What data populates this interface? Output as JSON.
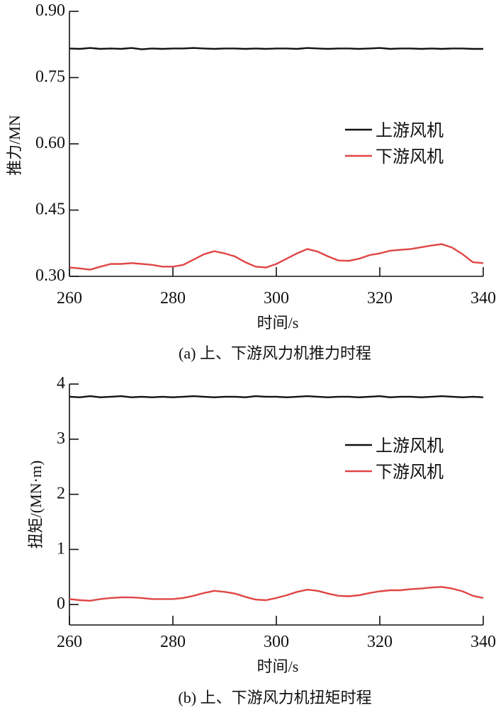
{
  "chart_data": [
    {
      "type": "line",
      "title": "(a)  上、下游风力机推力时程",
      "xlabel": "时间/s",
      "ylabel": "推力/MN",
      "xlim": [
        260,
        340
      ],
      "ylim": [
        0.3,
        0.9
      ],
      "xticks": [
        260,
        280,
        300,
        320,
        340
      ],
      "xtick_labels": [
        "260",
        "280",
        "300",
        "320",
        "340"
      ],
      "yticks": [
        0.3,
        0.45,
        0.6,
        0.75,
        0.9
      ],
      "ytick_labels": [
        "0.30",
        "0.45",
        "0.60",
        "0.75",
        "0.90"
      ],
      "legend": "right-middle",
      "grid": false,
      "x": [
        260,
        262,
        264,
        266,
        268,
        270,
        272,
        274,
        276,
        278,
        280,
        282,
        284,
        286,
        288,
        290,
        292,
        294,
        296,
        298,
        300,
        302,
        304,
        306,
        308,
        310,
        312,
        314,
        316,
        318,
        320,
        322,
        324,
        326,
        328,
        330,
        332,
        334,
        336,
        338,
        340
      ],
      "series": [
        {
          "name": "上游风机",
          "color": "#111111",
          "values": [
            0.816,
            0.815,
            0.817,
            0.815,
            0.816,
            0.815,
            0.817,
            0.814,
            0.816,
            0.815,
            0.816,
            0.816,
            0.817,
            0.816,
            0.815,
            0.816,
            0.816,
            0.815,
            0.816,
            0.815,
            0.816,
            0.816,
            0.815,
            0.817,
            0.816,
            0.815,
            0.816,
            0.816,
            0.815,
            0.816,
            0.817,
            0.815,
            0.816,
            0.816,
            0.815,
            0.816,
            0.815,
            0.816,
            0.816,
            0.815,
            0.815
          ]
        },
        {
          "name": "下游风机",
          "color": "#e04545",
          "values": [
            0.32,
            0.318,
            0.315,
            0.322,
            0.328,
            0.328,
            0.33,
            0.328,
            0.326,
            0.322,
            0.322,
            0.326,
            0.338,
            0.35,
            0.357,
            0.352,
            0.345,
            0.332,
            0.322,
            0.32,
            0.328,
            0.34,
            0.352,
            0.362,
            0.356,
            0.345,
            0.336,
            0.335,
            0.34,
            0.348,
            0.352,
            0.358,
            0.36,
            0.362,
            0.366,
            0.37,
            0.373,
            0.365,
            0.35,
            0.332,
            0.33
          ]
        }
      ]
    },
    {
      "type": "line",
      "title": "(b)  上、下游风力机扭矩时程",
      "xlabel": "时间/s",
      "ylabel": "扭矩/(MN·m)",
      "xlim": [
        260,
        340
      ],
      "ylim": [
        -0.37,
        4
      ],
      "xticks": [
        260,
        280,
        300,
        320,
        340
      ],
      "xtick_labels": [
        "260",
        "280",
        "300",
        "320",
        "340"
      ],
      "yticks": [
        0,
        1,
        2,
        3,
        4
      ],
      "ytick_labels": [
        "0",
        "1",
        "2",
        "3",
        "4"
      ],
      "legend": "right-middle",
      "grid": false,
      "x": [
        260,
        262,
        264,
        266,
        268,
        270,
        272,
        274,
        276,
        278,
        280,
        282,
        284,
        286,
        288,
        290,
        292,
        294,
        296,
        298,
        300,
        302,
        304,
        306,
        308,
        310,
        312,
        314,
        316,
        318,
        320,
        322,
        324,
        326,
        328,
        330,
        332,
        334,
        336,
        338,
        340
      ],
      "series": [
        {
          "name": "上游风机",
          "color": "#111111",
          "values": [
            3.77,
            3.76,
            3.78,
            3.76,
            3.77,
            3.78,
            3.76,
            3.77,
            3.76,
            3.77,
            3.76,
            3.77,
            3.78,
            3.77,
            3.76,
            3.77,
            3.77,
            3.76,
            3.78,
            3.77,
            3.77,
            3.76,
            3.77,
            3.78,
            3.77,
            3.76,
            3.77,
            3.77,
            3.76,
            3.77,
            3.78,
            3.76,
            3.77,
            3.77,
            3.76,
            3.77,
            3.78,
            3.77,
            3.76,
            3.77,
            3.76
          ]
        },
        {
          "name": "下游风机",
          "color": "#e04545",
          "values": [
            0.1,
            0.08,
            0.07,
            0.1,
            0.12,
            0.13,
            0.13,
            0.12,
            0.1,
            0.1,
            0.1,
            0.12,
            0.16,
            0.21,
            0.25,
            0.23,
            0.2,
            0.14,
            0.09,
            0.08,
            0.12,
            0.17,
            0.23,
            0.27,
            0.25,
            0.2,
            0.16,
            0.15,
            0.17,
            0.21,
            0.24,
            0.26,
            0.26,
            0.28,
            0.29,
            0.31,
            0.32,
            0.29,
            0.24,
            0.16,
            0.12
          ]
        }
      ]
    }
  ]
}
